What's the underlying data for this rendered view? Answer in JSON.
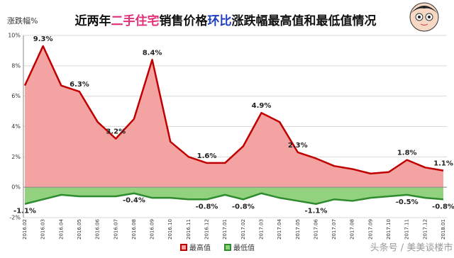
{
  "chart_data": {
    "type": "area",
    "title_parts": [
      {
        "text": "近两年",
        "color": "#111111"
      },
      {
        "text": "二手住宅",
        "color": "#e0307a"
      },
      {
        "text": "销售价格",
        "color": "#111111"
      },
      {
        "text": "环比",
        "color": "#1f3fbf"
      },
      {
        "text": "涨跌幅最高值和最低值情况",
        "color": "#111111"
      }
    ],
    "y_label": "涨跌幅%",
    "watermark": "头条号 / 美美谈楼市",
    "categories": [
      "2016.02",
      "2016.03",
      "2016.04",
      "2016.05",
      "2016.06",
      "2016.07",
      "2016.08",
      "2016.09",
      "2016.10",
      "2016.11",
      "2016.12",
      "2017.01",
      "2017.02",
      "2017.03",
      "2017.04",
      "2017.05",
      "2017.06",
      "2017.07",
      "2017.08",
      "2017.09",
      "2017.10",
      "2017.11",
      "2017.12",
      "2018.01"
    ],
    "series": [
      {
        "name": "最高值",
        "color": "#c00000",
        "fill": "#f4a3a3",
        "values": [
          6.7,
          9.3,
          6.7,
          6.3,
          4.3,
          3.2,
          4.5,
          8.4,
          3.0,
          2.0,
          1.6,
          1.6,
          2.7,
          4.9,
          4.3,
          2.3,
          1.9,
          1.4,
          1.2,
          0.9,
          1.0,
          1.8,
          1.3,
          1.1
        ],
        "value_labels": [
          null,
          "9.3%",
          null,
          "6.3%",
          null,
          "3.2%",
          null,
          "8.4%",
          null,
          null,
          "1.6%",
          null,
          null,
          "4.9%",
          null,
          "2.3%",
          null,
          null,
          null,
          null,
          null,
          "1.8%",
          null,
          "1.1%"
        ]
      },
      {
        "name": "最低值",
        "color": "#2e8b2e",
        "fill": "#92d27f",
        "values": [
          -1.1,
          -0.8,
          -0.5,
          -0.6,
          -0.6,
          -0.6,
          -0.4,
          -0.7,
          -0.7,
          -0.8,
          -0.8,
          -0.5,
          -0.8,
          -0.4,
          -0.7,
          -0.9,
          -1.1,
          -0.8,
          -0.9,
          -0.7,
          -0.6,
          -0.5,
          -0.7,
          -0.8
        ],
        "value_labels": [
          "-1.1%",
          null,
          null,
          null,
          null,
          null,
          "-0.4%",
          null,
          null,
          null,
          "-0.8%",
          null,
          "-0.8%",
          null,
          null,
          null,
          "-1.1%",
          null,
          null,
          null,
          null,
          "-0.5%",
          null,
          "-0.8%"
        ]
      }
    ],
    "ylim": [
      -2,
      10
    ],
    "yticks": [
      {
        "value": -2,
        "label": "-2%"
      },
      {
        "value": 0,
        "label": "0%"
      },
      {
        "value": 2,
        "label": "2%"
      },
      {
        "value": 4,
        "label": "4%"
      },
      {
        "value": 6,
        "label": "6%"
      },
      {
        "value": 8,
        "label": "8%"
      },
      {
        "value": 10,
        "label": "10%"
      }
    ],
    "grid": true
  }
}
